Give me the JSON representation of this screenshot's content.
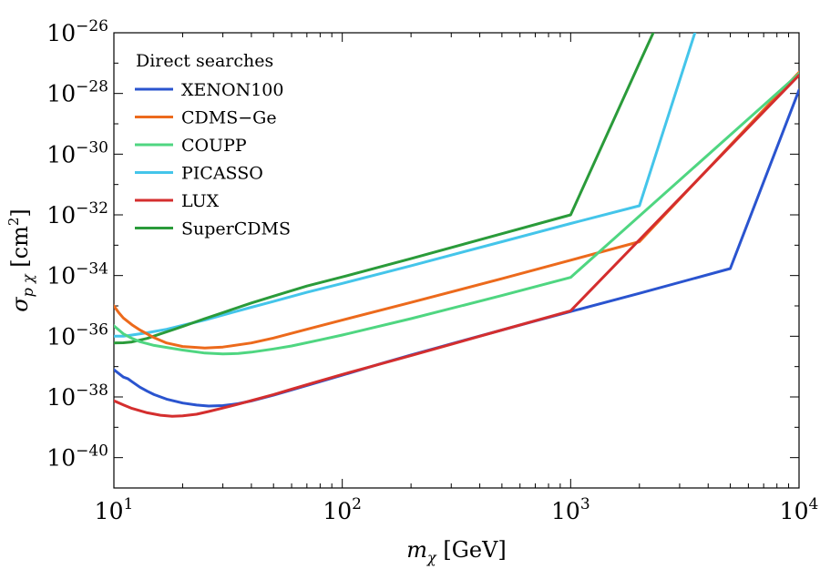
{
  "chart_data": {
    "type": "line",
    "xscale": "log",
    "yscale": "log",
    "xlim": [
      10,
      10000
    ],
    "ylim": [
      1e-41,
      1e-26
    ],
    "xlabel": {
      "main": "m",
      "sub": "χ",
      "unit": " [GeV]"
    },
    "ylabel": {
      "main": "σ",
      "sub": "p χ",
      "unit_open": " [cm",
      "unit_sup": "2",
      "unit_close": "]"
    },
    "x_ticks": [
      {
        "value": 10,
        "base": "10",
        "exp": "1"
      },
      {
        "value": 100,
        "base": "10",
        "exp": "2"
      },
      {
        "value": 1000,
        "base": "10",
        "exp": "3"
      },
      {
        "value": 10000,
        "base": "10",
        "exp": "4"
      }
    ],
    "y_ticks": [
      {
        "value": 1e-26,
        "base": "10",
        "exp": "−26"
      },
      {
        "value": 1e-28,
        "base": "10",
        "exp": "−28"
      },
      {
        "value": 1e-30,
        "base": "10",
        "exp": "−30"
      },
      {
        "value": 1e-32,
        "base": "10",
        "exp": "−32"
      },
      {
        "value": 1e-34,
        "base": "10",
        "exp": "−34"
      },
      {
        "value": 1e-36,
        "base": "10",
        "exp": "−36"
      },
      {
        "value": 1e-38,
        "base": "10",
        "exp": "−38"
      },
      {
        "value": 1e-40,
        "base": "10",
        "exp": "−40"
      }
    ],
    "legend": {
      "title": "Direct searches",
      "position": "top-left"
    },
    "series": [
      {
        "name": "XENON100",
        "color": "#2a54cf",
        "points": [
          [
            10,
            7.9e-38
          ],
          [
            10.4,
            6.3e-38
          ],
          [
            11,
            4.5e-38
          ],
          [
            11.5,
            4e-38
          ],
          [
            12,
            3.2e-38
          ],
          [
            13,
            2.1e-38
          ],
          [
            14,
            1.55e-38
          ],
          [
            15,
            1.2e-38
          ],
          [
            17,
            8.5e-39
          ],
          [
            20,
            6.3e-39
          ],
          [
            23,
            5.4e-39
          ],
          [
            26,
            5e-39
          ],
          [
            30,
            5.2e-39
          ],
          [
            35,
            6e-39
          ],
          [
            40,
            7.4e-39
          ],
          [
            50,
            1.15e-38
          ],
          [
            60,
            1.7e-38
          ],
          [
            80,
            3.2e-38
          ],
          [
            100,
            5.2e-38
          ],
          [
            150,
            1.3e-37
          ],
          [
            200,
            2.4e-37
          ],
          [
            300,
            5.6e-37
          ],
          [
            500,
            1.6e-36
          ],
          [
            700,
            3.2e-36
          ],
          [
            1000,
            6.5e-36
          ],
          [
            2000,
            2.6e-35
          ],
          [
            5000,
            1.7e-34
          ],
          [
            10000,
            1.3e-28
          ]
        ]
      },
      {
        "name": "CDMS−Ge",
        "color": "#ec6a1c",
        "points": [
          [
            10,
            1e-35
          ],
          [
            10.5,
            6e-36
          ],
          [
            11,
            4e-36
          ],
          [
            12,
            2.4e-36
          ],
          [
            13,
            1.6e-36
          ],
          [
            15,
            9e-37
          ],
          [
            17,
            6e-37
          ],
          [
            20,
            4.6e-37
          ],
          [
            25,
            4.1e-37
          ],
          [
            30,
            4.4e-37
          ],
          [
            40,
            6e-37
          ],
          [
            50,
            8.7e-37
          ],
          [
            70,
            1.7e-36
          ],
          [
            100,
            3.4e-36
          ],
          [
            200,
            1.3e-35
          ],
          [
            500,
            7.9e-35
          ],
          [
            1000,
            3.2e-34
          ],
          [
            2000,
            1.3e-33
          ],
          [
            10000,
            5e-28
          ]
        ]
      },
      {
        "name": "COUPP",
        "color": "#4fd681",
        "points": [
          [
            10,
            2.2e-36
          ],
          [
            11,
            1.2e-36
          ],
          [
            12,
            8.5e-37
          ],
          [
            13,
            6.6e-37
          ],
          [
            15,
            5e-37
          ],
          [
            20,
            3.5e-37
          ],
          [
            25,
            2.8e-37
          ],
          [
            30,
            2.6e-37
          ],
          [
            35,
            2.7e-37
          ],
          [
            40,
            3e-37
          ],
          [
            50,
            3.8e-37
          ],
          [
            60,
            4.8e-37
          ],
          [
            80,
            7.6e-37
          ],
          [
            100,
            1.1e-36
          ],
          [
            200,
            3.8e-36
          ],
          [
            500,
            2.2e-35
          ],
          [
            1000,
            8.7e-35
          ],
          [
            10000,
            4.5e-28
          ]
        ]
      },
      {
        "name": "PICASSO",
        "color": "#44c5ea",
        "points": [
          [
            10,
            1e-36
          ],
          [
            11,
            1e-36
          ],
          [
            12,
            1.1e-36
          ],
          [
            14,
            1.3e-36
          ],
          [
            17,
            1.7e-36
          ],
          [
            20,
            2.3e-36
          ],
          [
            25,
            3.4e-36
          ],
          [
            30,
            5e-36
          ],
          [
            40,
            9e-36
          ],
          [
            50,
            1.4e-35
          ],
          [
            70,
            2.8e-35
          ],
          [
            100,
            5.5e-35
          ],
          [
            200,
            2.1e-34
          ],
          [
            500,
            1.3e-33
          ],
          [
            1000,
            5.2e-33
          ],
          [
            2000,
            2e-32
          ],
          [
            3500,
            1e-26
          ]
        ]
      },
      {
        "name": "LUX",
        "color": "#d42e2e",
        "points": [
          [
            10,
            7.5e-39
          ],
          [
            11,
            5.5e-39
          ],
          [
            12,
            4.2e-39
          ],
          [
            14,
            3e-39
          ],
          [
            16,
            2.5e-39
          ],
          [
            18,
            2.3e-39
          ],
          [
            20,
            2.4e-39
          ],
          [
            23,
            2.7e-39
          ],
          [
            26,
            3.3e-39
          ],
          [
            30,
            4.3e-39
          ],
          [
            35,
            5.8e-39
          ],
          [
            40,
            7.6e-39
          ],
          [
            50,
            1.2e-38
          ],
          [
            60,
            1.8e-38
          ],
          [
            80,
            3.4e-38
          ],
          [
            100,
            5.5e-38
          ],
          [
            200,
            2.3e-37
          ],
          [
            500,
            1.6e-36
          ],
          [
            1000,
            6.9e-36
          ],
          [
            10000,
            4e-28
          ]
        ]
      },
      {
        "name": "SuperCDMS",
        "color": "#2a9b3a",
        "points": [
          [
            10,
            6e-37
          ],
          [
            11,
            6.1e-37
          ],
          [
            12,
            6.5e-37
          ],
          [
            14,
            8.5e-37
          ],
          [
            16,
            1.2e-36
          ],
          [
            18,
            1.6e-36
          ],
          [
            20,
            2.1e-36
          ],
          [
            25,
            3.8e-36
          ],
          [
            30,
            6e-36
          ],
          [
            40,
            1.25e-35
          ],
          [
            50,
            2.1e-35
          ],
          [
            70,
            4.5e-35
          ],
          [
            100,
            9e-35
          ],
          [
            200,
            3.6e-34
          ],
          [
            500,
            2.4e-33
          ],
          [
            1000,
            1e-32
          ],
          [
            2000,
            1e-27
          ],
          [
            2300,
            1e-26
          ]
        ]
      }
    ]
  }
}
